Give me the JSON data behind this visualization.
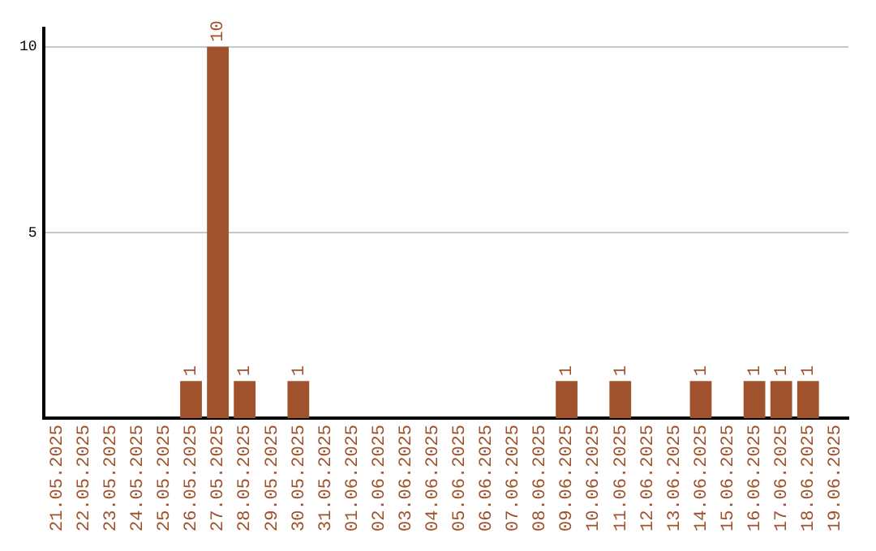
{
  "chart_data": {
    "type": "bar",
    "categories": [
      "21.05.2025",
      "22.05.2025",
      "23.05.2025",
      "24.05.2025",
      "25.05.2025",
      "26.05.2025",
      "27.05.2025",
      "28.05.2025",
      "29.05.2025",
      "30.05.2025",
      "31.05.2025",
      "01.06.2025",
      "02.06.2025",
      "03.06.2025",
      "04.06.2025",
      "05.06.2025",
      "06.06.2025",
      "07.06.2025",
      "08.06.2025",
      "09.06.2025",
      "10.06.2025",
      "11.06.2025",
      "12.06.2025",
      "13.06.2025",
      "14.06.2025",
      "15.06.2025",
      "16.06.2025",
      "17.06.2025",
      "18.06.2025",
      "19.06.2025"
    ],
    "values": [
      0,
      0,
      0,
      0,
      0,
      1,
      10,
      1,
      0,
      1,
      0,
      0,
      0,
      0,
      0,
      0,
      0,
      0,
      0,
      1,
      0,
      1,
      0,
      0,
      1,
      0,
      1,
      1,
      1,
      0
    ],
    "value_labels": [
      null,
      null,
      null,
      null,
      null,
      "1",
      "10",
      "1",
      null,
      "1",
      null,
      null,
      null,
      null,
      null,
      null,
      null,
      null,
      null,
      "1",
      null,
      "1",
      null,
      null,
      "1",
      null,
      "1",
      "1",
      "1",
      null
    ],
    "color": "#a0522d",
    "ylim": [
      0,
      10.5
    ],
    "yticks": [
      5,
      10
    ],
    "grid": "y",
    "legend": false
  }
}
